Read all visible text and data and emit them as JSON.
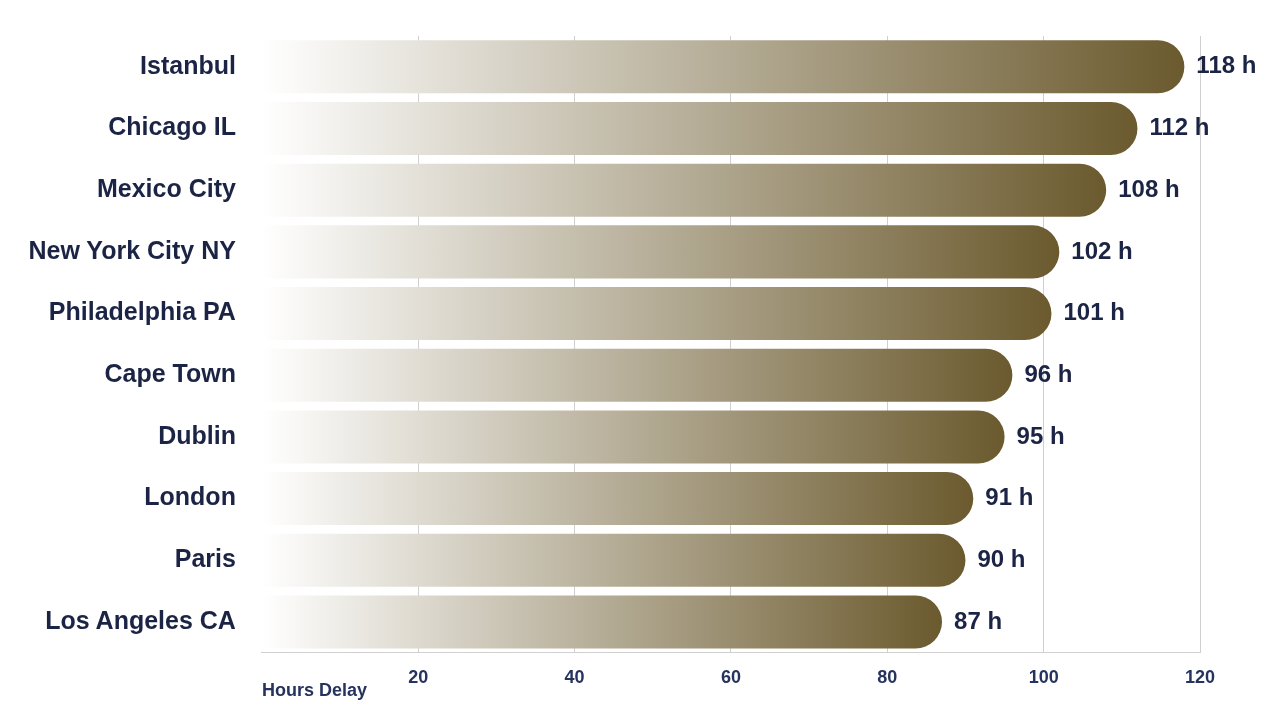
{
  "chart_data": {
    "type": "bar",
    "orientation": "horizontal",
    "xlabel": "Hours Delay",
    "categories": [
      "Istanbul",
      "Chicago IL",
      "Mexico City",
      "New York City NY",
      "Philadelphia PA",
      "Cape Town",
      "Dublin",
      "London",
      "Paris",
      "Los Angeles CA"
    ],
    "values": [
      118,
      112,
      108,
      102,
      101,
      96,
      95,
      91,
      90,
      87
    ],
    "value_labels": [
      "118 h",
      "112 h",
      "108 h",
      "102 h",
      "101 h",
      "96 h",
      "95 h",
      "91 h",
      "90 h",
      "87 h"
    ],
    "color": "#6b5a2e",
    "xlim": [
      0,
      120
    ],
    "xticks": [
      20,
      40,
      60,
      80,
      100,
      120
    ],
    "grid": "x",
    "legend": false
  }
}
